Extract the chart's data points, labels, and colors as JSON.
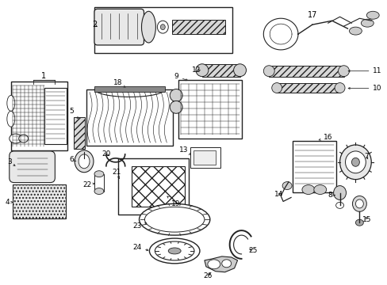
{
  "bg_color": "#ffffff",
  "line_color": "#222222",
  "label_color": "#000000",
  "figsize": [
    4.89,
    3.6
  ],
  "dpi": 100
}
